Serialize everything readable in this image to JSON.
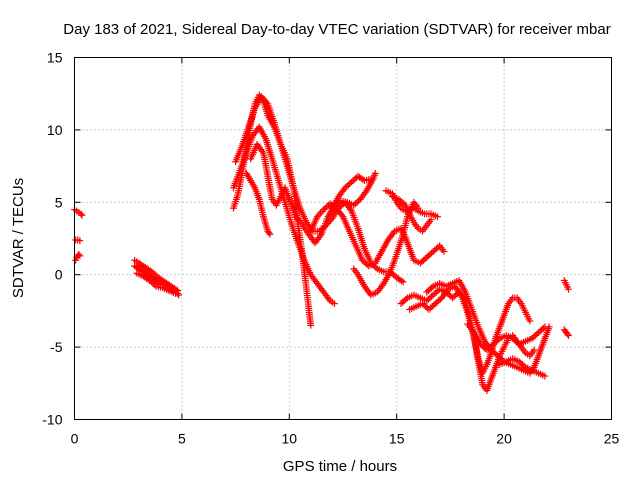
{
  "chart_data": {
    "type": "scatter",
    "title": "Day 183 of 2021, Sidereal Day-to-day VTEC variation (SDTVAR) for receiver mbar",
    "xlabel": "GPS time / hours",
    "ylabel": "SDTVAR / TECUs",
    "xlim": [
      0,
      25
    ],
    "ylim": [
      -10,
      15
    ],
    "xticks": [
      0,
      5,
      10,
      15,
      20,
      25
    ],
    "yticks": [
      -10,
      -5,
      0,
      5,
      10,
      15
    ],
    "grid": true,
    "marker": "plus",
    "color": "#ff0000",
    "segments": [
      [
        [
          0.0,
          4.5
        ],
        [
          0.1,
          4.4
        ],
        [
          0.2,
          4.3
        ],
        [
          0.3,
          4.2
        ],
        [
          0.35,
          4.1
        ]
      ],
      [
        [
          0.05,
          2.4
        ],
        [
          0.15,
          2.4
        ],
        [
          0.25,
          2.35
        ]
      ],
      [
        [
          0.05,
          1.0
        ],
        [
          0.1,
          1.2
        ],
        [
          0.2,
          1.4
        ],
        [
          0.25,
          1.3
        ]
      ],
      [
        [
          2.8,
          1.0
        ],
        [
          3.0,
          0.8
        ],
        [
          3.3,
          0.5
        ],
        [
          3.6,
          0.2
        ],
        [
          3.9,
          -0.2
        ],
        [
          4.2,
          -0.5
        ],
        [
          4.5,
          -0.8
        ],
        [
          4.8,
          -1.1
        ]
      ],
      [
        [
          2.8,
          0.6
        ],
        [
          3.1,
          0.3
        ],
        [
          3.4,
          0.0
        ],
        [
          3.7,
          -0.3
        ],
        [
          4.0,
          -0.6
        ],
        [
          4.3,
          -0.8
        ],
        [
          4.6,
          -1.0
        ],
        [
          4.85,
          -1.4
        ]
      ],
      [
        [
          2.9,
          0.1
        ],
        [
          3.2,
          -0.1
        ],
        [
          3.5,
          -0.4
        ],
        [
          3.8,
          -0.8
        ],
        [
          4.1,
          -0.9
        ],
        [
          4.4,
          -1.1
        ],
        [
          4.7,
          -1.3
        ]
      ],
      [
        [
          7.4,
          4.6
        ],
        [
          7.6,
          5.5
        ],
        [
          7.8,
          7.0
        ],
        [
          8.0,
          8.8
        ],
        [
          8.2,
          10.4
        ],
        [
          8.4,
          11.8
        ],
        [
          8.6,
          12.4
        ],
        [
          8.8,
          12.0
        ],
        [
          9.0,
          11.0
        ],
        [
          9.3,
          10.2
        ],
        [
          9.6,
          9.0
        ],
        [
          9.9,
          8.0
        ],
        [
          10.2,
          6.0
        ],
        [
          10.4,
          3.5
        ],
        [
          10.6,
          1.5
        ],
        [
          10.8,
          -1.0
        ],
        [
          11.0,
          -3.5
        ]
      ],
      [
        [
          7.4,
          6.0
        ],
        [
          7.7,
          7.2
        ],
        [
          8.0,
          8.4
        ],
        [
          8.3,
          9.6
        ],
        [
          8.6,
          10.2
        ],
        [
          8.9,
          9.4
        ],
        [
          9.2,
          8.0
        ],
        [
          9.5,
          6.5
        ],
        [
          9.8,
          5.0
        ],
        [
          10.1,
          3.5
        ],
        [
          10.4,
          2.2
        ],
        [
          10.7,
          1.0
        ],
        [
          11.0,
          0.0
        ],
        [
          11.3,
          -0.6
        ],
        [
          11.6,
          -1.2
        ],
        [
          11.9,
          -1.8
        ],
        [
          12.1,
          -2.0
        ]
      ],
      [
        [
          7.5,
          7.8
        ],
        [
          7.8,
          8.9
        ],
        [
          8.1,
          10.2
        ],
        [
          8.4,
          11.5
        ],
        [
          8.7,
          12.3
        ],
        [
          9.0,
          11.8
        ],
        [
          9.3,
          10.5
        ],
        [
          9.6,
          9.0
        ],
        [
          9.9,
          7.5
        ],
        [
          10.2,
          6.0
        ],
        [
          10.5,
          4.6
        ],
        [
          10.8,
          3.6
        ],
        [
          11.1,
          3.0
        ],
        [
          11.4,
          3.0
        ],
        [
          11.7,
          3.4
        ],
        [
          12.0,
          3.9
        ],
        [
          12.3,
          4.6
        ],
        [
          12.6,
          5.0
        ],
        [
          12.9,
          4.4
        ],
        [
          13.2,
          3.2
        ],
        [
          13.5,
          1.8
        ],
        [
          13.8,
          0.8
        ],
        [
          14.1,
          0.4
        ],
        [
          14.4,
          0.2
        ],
        [
          14.7,
          0.2
        ],
        [
          15.0,
          -0.2
        ],
        [
          15.3,
          -0.5
        ]
      ],
      [
        [
          8.2,
          8.0
        ],
        [
          8.5,
          9.0
        ],
        [
          8.8,
          8.4
        ],
        [
          9.0,
          6.8
        ],
        [
          9.2,
          5.2
        ],
        [
          9.4,
          4.8
        ],
        [
          9.6,
          5.4
        ],
        [
          9.8,
          6.0
        ],
        [
          10.0,
          5.2
        ],
        [
          10.3,
          4.0
        ],
        [
          10.6,
          3.5
        ],
        [
          10.9,
          2.8
        ],
        [
          11.2,
          2.2
        ],
        [
          11.5,
          2.8
        ],
        [
          11.8,
          4.0
        ],
        [
          12.1,
          4.8
        ],
        [
          12.4,
          5.1
        ],
        [
          12.7,
          5.0
        ],
        [
          13.0,
          4.8
        ],
        [
          13.3,
          5.2
        ],
        [
          13.6,
          5.8
        ],
        [
          13.9,
          6.6
        ],
        [
          14.0,
          7.0
        ]
      ],
      [
        [
          8.0,
          7.0
        ],
        [
          8.2,
          6.5
        ],
        [
          8.4,
          6.0
        ],
        [
          8.6,
          5.2
        ],
        [
          8.8,
          4.0
        ],
        [
          9.0,
          3.0
        ],
        [
          9.1,
          2.8
        ]
      ],
      [
        [
          11.0,
          3.0
        ],
        [
          11.3,
          4.0
        ],
        [
          11.6,
          4.5
        ],
        [
          11.9,
          4.9
        ],
        [
          12.2,
          4.6
        ],
        [
          12.5,
          4.0
        ],
        [
          12.8,
          3.0
        ],
        [
          13.1,
          2.0
        ],
        [
          13.4,
          1.0
        ],
        [
          13.7,
          0.6
        ],
        [
          14.0,
          0.8
        ],
        [
          14.3,
          1.6
        ],
        [
          14.6,
          2.4
        ],
        [
          14.9,
          3.0
        ],
        [
          15.2,
          3.2
        ],
        [
          15.4,
          2.6
        ],
        [
          15.6,
          1.8
        ],
        [
          15.8,
          1.0
        ],
        [
          16.1,
          0.8
        ],
        [
          16.4,
          1.2
        ],
        [
          16.7,
          1.6
        ],
        [
          17.0,
          2.0
        ],
        [
          17.2,
          1.6
        ]
      ],
      [
        [
          12.0,
          4.6
        ],
        [
          12.3,
          5.4
        ],
        [
          12.6,
          6.0
        ],
        [
          12.9,
          6.4
        ],
        [
          13.2,
          6.8
        ],
        [
          13.5,
          6.5
        ],
        [
          13.8,
          6.6
        ]
      ],
      [
        [
          13.0,
          0.4
        ],
        [
          13.2,
          0.0
        ],
        [
          13.5,
          -0.8
        ],
        [
          13.8,
          -1.4
        ],
        [
          14.1,
          -1.2
        ],
        [
          14.4,
          -0.6
        ],
        [
          14.7,
          0.2
        ],
        [
          15.0,
          1.4
        ],
        [
          15.3,
          2.8
        ],
        [
          15.5,
          4.0
        ],
        [
          15.8,
          5.0
        ],
        [
          16.0,
          4.6
        ]
      ],
      [
        [
          14.5,
          5.8
        ],
        [
          14.8,
          5.6
        ],
        [
          15.0,
          5.0
        ],
        [
          15.2,
          4.6
        ],
        [
          15.4,
          4.4
        ],
        [
          15.6,
          4.5
        ],
        [
          15.8,
          4.6
        ],
        [
          16.0,
          4.4
        ],
        [
          16.3,
          4.2
        ],
        [
          16.6,
          4.2
        ],
        [
          16.9,
          4.0
        ]
      ],
      [
        [
          14.8,
          5.4
        ],
        [
          15.1,
          5.2
        ],
        [
          15.4,
          4.8
        ],
        [
          15.6,
          4.2
        ],
        [
          15.8,
          3.6
        ],
        [
          16.0,
          3.2
        ],
        [
          16.2,
          3.0
        ],
        [
          16.4,
          3.4
        ],
        [
          16.6,
          3.8
        ]
      ],
      [
        [
          15.2,
          -2.0
        ],
        [
          15.5,
          -1.6
        ],
        [
          15.8,
          -1.4
        ],
        [
          16.1,
          -1.6
        ],
        [
          16.4,
          -1.8
        ],
        [
          16.7,
          -1.4
        ],
        [
          17.0,
          -1.0
        ],
        [
          17.3,
          -1.2
        ],
        [
          17.6,
          -1.6
        ],
        [
          17.9,
          -1.2
        ],
        [
          18.2,
          -1.8
        ],
        [
          18.4,
          -3.0
        ],
        [
          18.6,
          -4.4
        ],
        [
          18.8,
          -5.8
        ],
        [
          19.0,
          -6.8
        ],
        [
          19.2,
          -6.2
        ],
        [
          19.4,
          -5.4
        ],
        [
          19.6,
          -4.4
        ],
        [
          19.8,
          -3.6
        ],
        [
          20.0,
          -2.8
        ],
        [
          20.2,
          -2.0
        ],
        [
          20.4,
          -1.6
        ],
        [
          20.6,
          -1.6
        ],
        [
          20.8,
          -2.0
        ],
        [
          21.0,
          -2.6
        ],
        [
          21.2,
          -3.2
        ]
      ],
      [
        [
          15.6,
          -2.4
        ],
        [
          15.9,
          -2.2
        ],
        [
          16.2,
          -2.0
        ],
        [
          16.5,
          -2.4
        ],
        [
          16.8,
          -2.0
        ],
        [
          17.1,
          -1.6
        ],
        [
          17.4,
          -1.0
        ],
        [
          17.7,
          -0.8
        ],
        [
          18.0,
          -1.4
        ],
        [
          18.3,
          -2.6
        ],
        [
          18.6,
          -4.2
        ],
        [
          18.8,
          -6.0
        ],
        [
          19.0,
          -7.6
        ],
        [
          19.2,
          -8.0
        ],
        [
          19.4,
          -7.2
        ],
        [
          19.6,
          -6.4
        ],
        [
          19.8,
          -5.6
        ],
        [
          20.0,
          -5.0
        ],
        [
          20.2,
          -4.4
        ],
        [
          20.4,
          -4.2
        ],
        [
          20.6,
          -4.6
        ],
        [
          20.8,
          -5.0
        ],
        [
          21.0,
          -5.4
        ],
        [
          21.2,
          -5.6
        ],
        [
          21.4,
          -5.2
        ]
      ],
      [
        [
          16.4,
          -1.2
        ],
        [
          16.7,
          -0.8
        ],
        [
          17.0,
          -0.6
        ],
        [
          17.3,
          -0.8
        ],
        [
          17.6,
          -0.6
        ],
        [
          17.9,
          -0.4
        ],
        [
          18.2,
          -1.2
        ],
        [
          18.5,
          -2.4
        ],
        [
          18.8,
          -3.6
        ],
        [
          19.1,
          -4.6
        ],
        [
          19.4,
          -5.2
        ],
        [
          19.7,
          -5.6
        ],
        [
          20.0,
          -6.0
        ],
        [
          20.3,
          -6.2
        ],
        [
          20.6,
          -6.4
        ],
        [
          20.9,
          -6.6
        ],
        [
          21.2,
          -6.8
        ],
        [
          21.4,
          -6.4
        ],
        [
          21.6,
          -5.6
        ],
        [
          21.8,
          -4.8
        ],
        [
          22.0,
          -4.0
        ],
        [
          22.1,
          -3.6
        ]
      ],
      [
        [
          18.3,
          -3.4
        ],
        [
          18.6,
          -4.0
        ],
        [
          18.9,
          -4.8
        ],
        [
          19.2,
          -5.2
        ],
        [
          19.5,
          -4.8
        ],
        [
          19.8,
          -4.4
        ],
        [
          20.1,
          -4.2
        ],
        [
          20.4,
          -4.4
        ],
        [
          20.7,
          -4.8
        ],
        [
          21.0,
          -4.6
        ],
        [
          21.3,
          -4.4
        ],
        [
          21.6,
          -4.0
        ],
        [
          21.9,
          -3.6
        ]
      ],
      [
        [
          19.8,
          -6.2
        ],
        [
          20.1,
          -6.0
        ],
        [
          20.4,
          -5.8
        ],
        [
          20.7,
          -6.0
        ],
        [
          21.0,
          -6.4
        ],
        [
          21.3,
          -6.6
        ],
        [
          21.6,
          -6.8
        ],
        [
          21.9,
          -7.0
        ]
      ],
      [
        [
          22.8,
          -0.4
        ],
        [
          22.9,
          -0.7
        ],
        [
          23.0,
          -1.0
        ]
      ],
      [
        [
          22.8,
          -3.8
        ],
        [
          22.9,
          -4.0
        ],
        [
          23.0,
          -4.2
        ]
      ]
    ]
  }
}
